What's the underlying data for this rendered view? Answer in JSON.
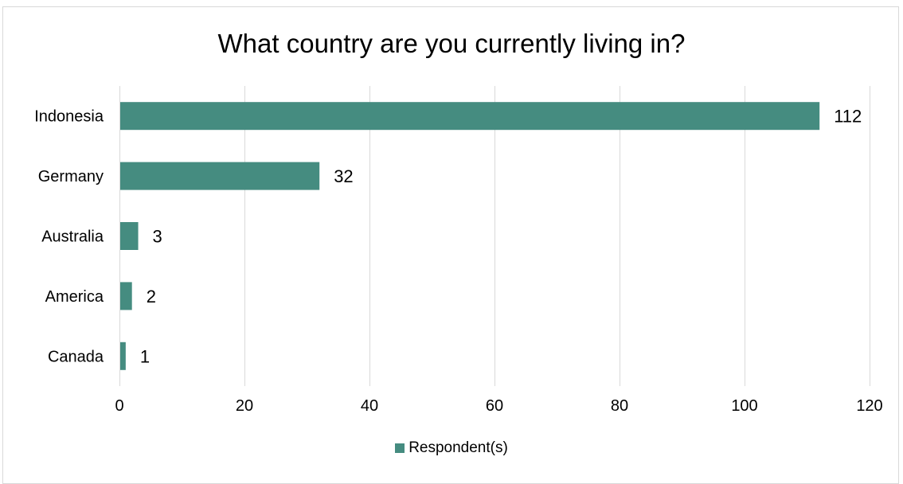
{
  "chart_data": {
    "type": "bar",
    "orientation": "horizontal",
    "title": "What country are you currently living in?",
    "categories": [
      "Indonesia",
      "Germany",
      "Australia",
      "America",
      "Canada"
    ],
    "series": [
      {
        "name": "Respondent(s)",
        "values": [
          112,
          32,
          3,
          2,
          1
        ]
      }
    ],
    "xlim": [
      0,
      120
    ],
    "x_ticks": [
      0,
      20,
      40,
      60,
      80,
      100,
      120
    ],
    "grid": "vertical",
    "legend": "bottom",
    "data_labels": true,
    "bar_color": "#458c80"
  }
}
